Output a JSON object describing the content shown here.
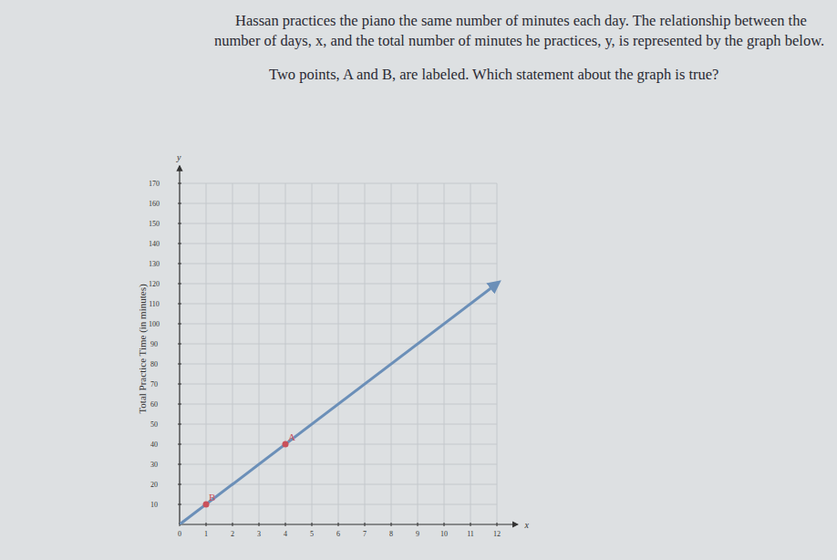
{
  "chart_data": {
    "type": "line",
    "title": "Hassan practices the piano the same number of minutes each day. The relationship between the number of days, x, and the total number of minutes he practices, y, is represented by the graph below.",
    "subtitle": "Two points, A and B, are labeled. Which statement about the graph is true?",
    "xlabel": "x",
    "ylabel": "Total Practice Time (in minutes)",
    "axis_names": {
      "y": "y"
    },
    "x": [
      0,
      12
    ],
    "series": [
      {
        "name": "Total practice time",
        "color": "#6b8fb8",
        "values": [
          0,
          120
        ],
        "marker": "none",
        "line_style": "solid"
      }
    ],
    "annotations": [
      {
        "text": "A",
        "x": 4,
        "y": 40,
        "color": "#c9505a"
      },
      {
        "text": "B",
        "x": 1,
        "y": 10,
        "color": "#c9505a"
      }
    ],
    "xlim": [
      0,
      12.5
    ],
    "ylim": [
      0,
      175
    ],
    "xticks": [
      0,
      1,
      2,
      3,
      4,
      5,
      6,
      7,
      8,
      9,
      10,
      11,
      12
    ],
    "yticks": [
      10,
      20,
      30,
      40,
      50,
      60,
      70,
      80,
      90,
      100,
      110,
      120,
      130,
      140,
      150,
      160,
      170
    ],
    "grid": true
  }
}
